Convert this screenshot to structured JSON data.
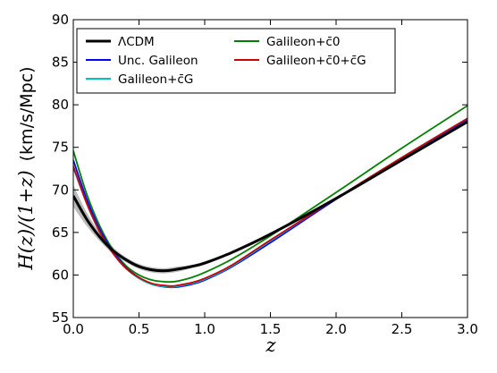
{
  "chart_data": {
    "type": "line",
    "title": "",
    "xlabel": "z",
    "ylabel_parts": [
      "H(z)/(1+z)",
      "(km/s/Mpc)"
    ],
    "xlim": [
      0.0,
      3.0
    ],
    "ylim": [
      55,
      90
    ],
    "x_ticks": [
      0.0,
      0.5,
      1.0,
      1.5,
      2.0,
      2.5,
      3.0
    ],
    "x_tick_labels": [
      "0.0",
      "0.5",
      "1.0",
      "1.5",
      "2.0",
      "2.5",
      "3.0"
    ],
    "y_ticks": [
      55,
      60,
      65,
      70,
      75,
      80,
      85,
      90
    ],
    "y_tick_labels": [
      "55",
      "60",
      "65",
      "70",
      "75",
      "80",
      "85",
      "90"
    ],
    "grid": false,
    "legend_position": "top-left",
    "series": [
      {
        "name": "ΛCDM",
        "color": "#000000",
        "band_color": "#aaaaaa",
        "x": [
          0.0,
          0.1,
          0.2,
          0.3,
          0.4,
          0.5,
          0.6,
          0.7,
          0.8,
          0.9,
          1.0,
          1.2,
          1.5,
          2.0,
          2.5,
          3.0
        ],
        "y": [
          69.3,
          66.6,
          64.5,
          62.9,
          61.8,
          61.0,
          60.6,
          60.5,
          60.7,
          61.0,
          61.4,
          62.6,
          64.8,
          69.0,
          73.5,
          78.0
        ],
        "band_lower": [
          68.0,
          65.8,
          64.0,
          62.5,
          61.5,
          60.7,
          60.3,
          60.2,
          60.4,
          60.8,
          61.2,
          62.5,
          64.8,
          69.0,
          73.5,
          78.0
        ],
        "band_upper": [
          70.6,
          67.4,
          65.0,
          63.3,
          62.1,
          61.3,
          60.9,
          60.8,
          61.0,
          61.2,
          61.6,
          62.7,
          64.8,
          69.0,
          73.5,
          78.0
        ]
      },
      {
        "name": "Unc. Galileon",
        "color": "#0000ff",
        "x": [
          0.0,
          0.1,
          0.2,
          0.3,
          0.4,
          0.5,
          0.6,
          0.7,
          0.75,
          0.8,
          0.9,
          1.0,
          1.2,
          1.5,
          2.0,
          2.5,
          3.0
        ],
        "y": [
          73.5,
          69.0,
          65.4,
          62.8,
          60.9,
          59.7,
          58.9,
          58.6,
          58.55,
          58.6,
          58.9,
          59.4,
          60.9,
          63.8,
          68.9,
          73.7,
          78.3
        ]
      },
      {
        "name": "Galileon+c̄G",
        "color": "#00bfbf",
        "x": [
          0.0,
          0.1,
          0.2,
          0.3,
          0.4,
          0.5,
          0.6,
          0.7,
          0.75,
          0.8,
          0.9,
          1.0,
          1.2,
          1.5,
          2.0,
          2.5,
          3.0
        ],
        "y": [
          72.6,
          68.5,
          65.1,
          62.6,
          60.8,
          59.6,
          58.9,
          58.65,
          58.6,
          58.7,
          59.0,
          59.5,
          61.0,
          64.0,
          69.0,
          73.8,
          78.4
        ]
      },
      {
        "name": "Galileon+c̄0",
        "color": "#008000",
        "x": [
          0.0,
          0.1,
          0.2,
          0.3,
          0.4,
          0.5,
          0.6,
          0.7,
          0.75,
          0.8,
          0.9,
          1.0,
          1.2,
          1.5,
          2.0,
          2.5,
          3.0
        ],
        "y": [
          74.6,
          69.6,
          65.8,
          63.0,
          61.1,
          60.0,
          59.4,
          59.2,
          59.2,
          59.3,
          59.7,
          60.3,
          61.8,
          64.6,
          69.7,
          74.9,
          79.9
        ]
      },
      {
        "name": "Galileon+c̄0+c̄G",
        "color": "#cc0000",
        "x": [
          0.0,
          0.1,
          0.2,
          0.3,
          0.4,
          0.5,
          0.6,
          0.7,
          0.75,
          0.8,
          0.9,
          1.0,
          1.2,
          1.5,
          2.0,
          2.5,
          3.0
        ],
        "y": [
          72.8,
          68.5,
          65.1,
          62.6,
          60.8,
          59.7,
          59.0,
          58.75,
          58.7,
          58.8,
          59.1,
          59.6,
          61.1,
          64.1,
          69.0,
          73.8,
          78.4
        ]
      }
    ]
  }
}
